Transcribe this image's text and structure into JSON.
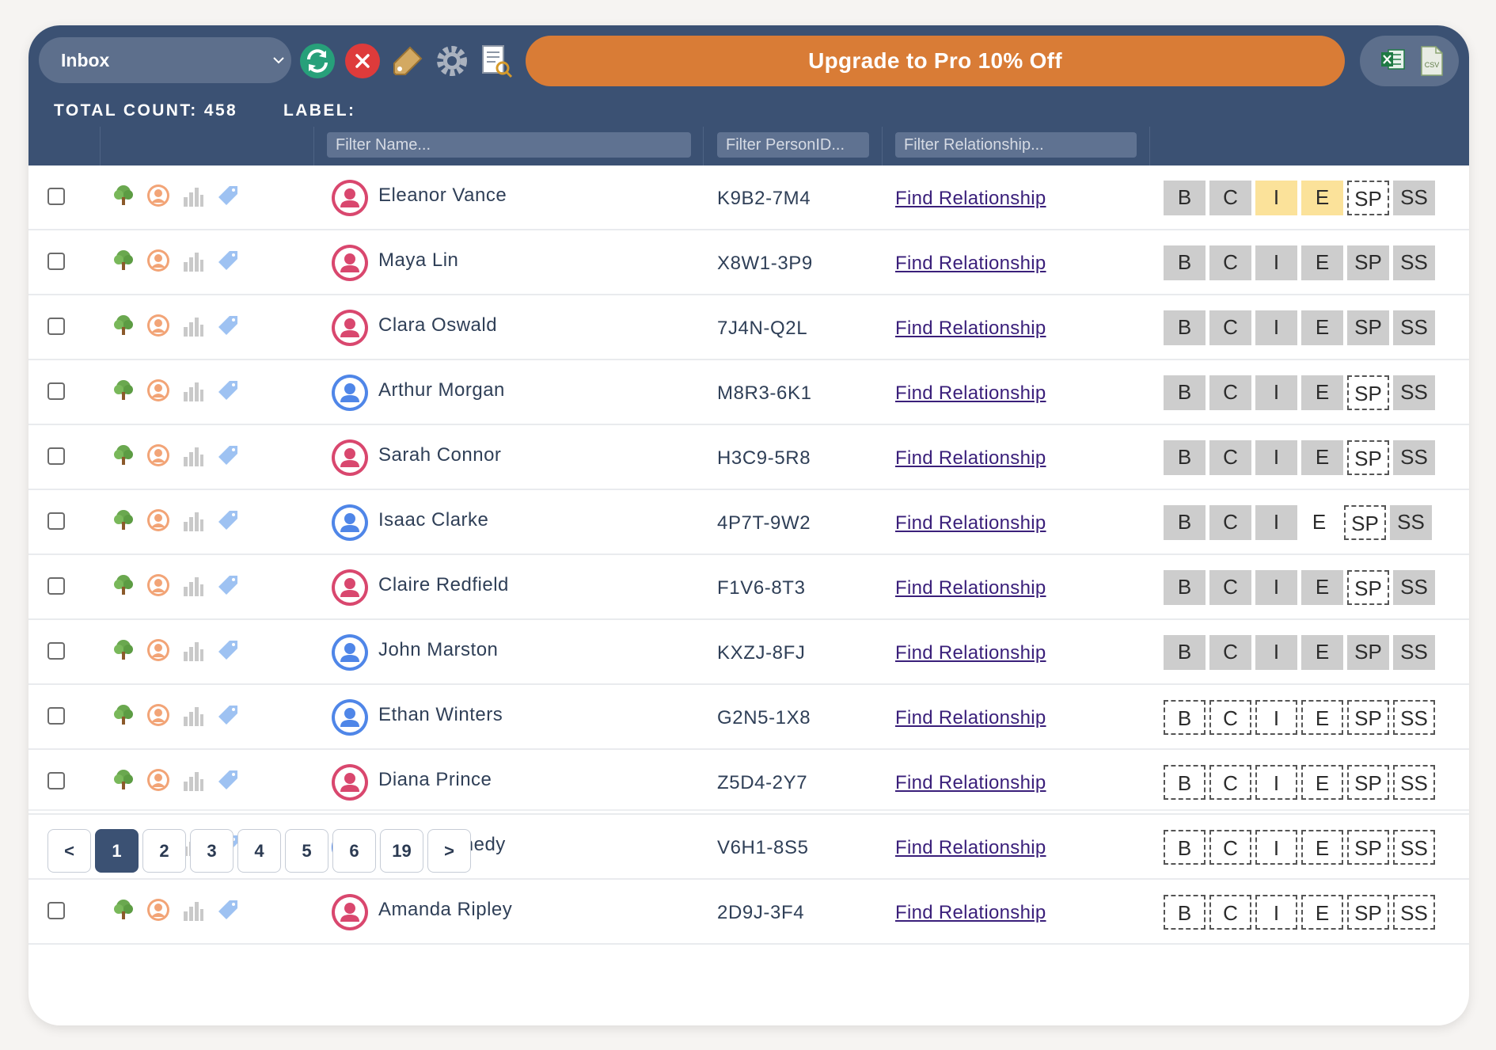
{
  "toolbar": {
    "folder": "Inbox",
    "upgrade_label": "Upgrade to Pro 10% Off",
    "total_count_label": "TOTAL COUNT:",
    "total_count": "458",
    "label_label": "LABEL:",
    "icons": [
      "refresh-icon",
      "close-icon",
      "tag-icon",
      "gear-icon",
      "report-icon",
      "excel-icon",
      "csv-icon"
    ],
    "csv_text": "CSV"
  },
  "filters": {
    "name_placeholder": "Filter Name...",
    "personid_placeholder": "Filter PersonID...",
    "relationship_placeholder": "Filter Relationship..."
  },
  "relationship_link": "Find Relationship",
  "chip_labels": [
    "B",
    "C",
    "I",
    "E",
    "SP",
    "SS"
  ],
  "row_icons": [
    "tree-icon",
    "person-icon",
    "chart-icon",
    "tag-icon"
  ],
  "rows": [
    {
      "name": "Eleanor Vance",
      "gender": "female",
      "pid": "K9B2-7M4",
      "chips": [
        "g",
        "g",
        "y",
        "y",
        "d",
        "g"
      ]
    },
    {
      "name": "Maya Lin",
      "gender": "female",
      "pid": "X8W1-3P9",
      "chips": [
        "g",
        "g",
        "g",
        "g",
        "g",
        "g"
      ]
    },
    {
      "name": "Clara Oswald",
      "gender": "female",
      "pid": "7J4N-Q2L",
      "chips": [
        "g",
        "g",
        "g",
        "g",
        "g",
        "g"
      ]
    },
    {
      "name": "Arthur Morgan",
      "gender": "male",
      "pid": "M8R3-6K1",
      "chips": [
        "g",
        "g",
        "g",
        "g",
        "d",
        "g"
      ]
    },
    {
      "name": "Sarah Connor",
      "gender": "female",
      "pid": "H3C9-5R8",
      "chips": [
        "g",
        "g",
        "g",
        "g",
        "d",
        "g"
      ]
    },
    {
      "name": "Isaac Clarke",
      "gender": "male",
      "pid": "4P7T-9W2",
      "chips": [
        "g",
        "g",
        "g",
        "p",
        "d",
        "g"
      ]
    },
    {
      "name": "Claire Redfield",
      "gender": "female",
      "pid": "F1V6-8T3",
      "chips": [
        "g",
        "g",
        "g",
        "g",
        "d",
        "g"
      ]
    },
    {
      "name": "John Marston",
      "gender": "male",
      "pid": "KXZJ-8FJ",
      "chips": [
        "g",
        "g",
        "g",
        "g",
        "g",
        "g"
      ]
    },
    {
      "name": "Ethan Winters",
      "gender": "male",
      "pid": "G2N5-1X8",
      "chips": [
        "d",
        "d",
        "d",
        "d",
        "d",
        "d"
      ]
    },
    {
      "name": "Diana Prince",
      "gender": "female",
      "pid": "Z5D4-2Y7",
      "chips": [
        "d",
        "d",
        "d",
        "d",
        "d",
        "d"
      ]
    },
    {
      "name": "Leon Kennedy",
      "gender": "male",
      "pid": "V6H1-8S5",
      "chips": [
        "d",
        "d",
        "d",
        "d",
        "d",
        "d"
      ]
    },
    {
      "name": "Amanda Ripley",
      "gender": "female",
      "pid": "2D9J-3F4",
      "chips": [
        "d",
        "d",
        "d",
        "d",
        "d",
        "d"
      ]
    }
  ],
  "pagination": {
    "prev": "<",
    "next": ">",
    "pages": [
      "1",
      "2",
      "3",
      "4",
      "5",
      "6",
      "19"
    ],
    "active": "1"
  },
  "colors": {
    "header": "#3b5173",
    "upgrade": "#d97c36",
    "female_avatar": "#d9476e",
    "male_avatar": "#4f86e8",
    "chip_gray": "#cdcdcd",
    "chip_yellow": "#fbe29a"
  }
}
